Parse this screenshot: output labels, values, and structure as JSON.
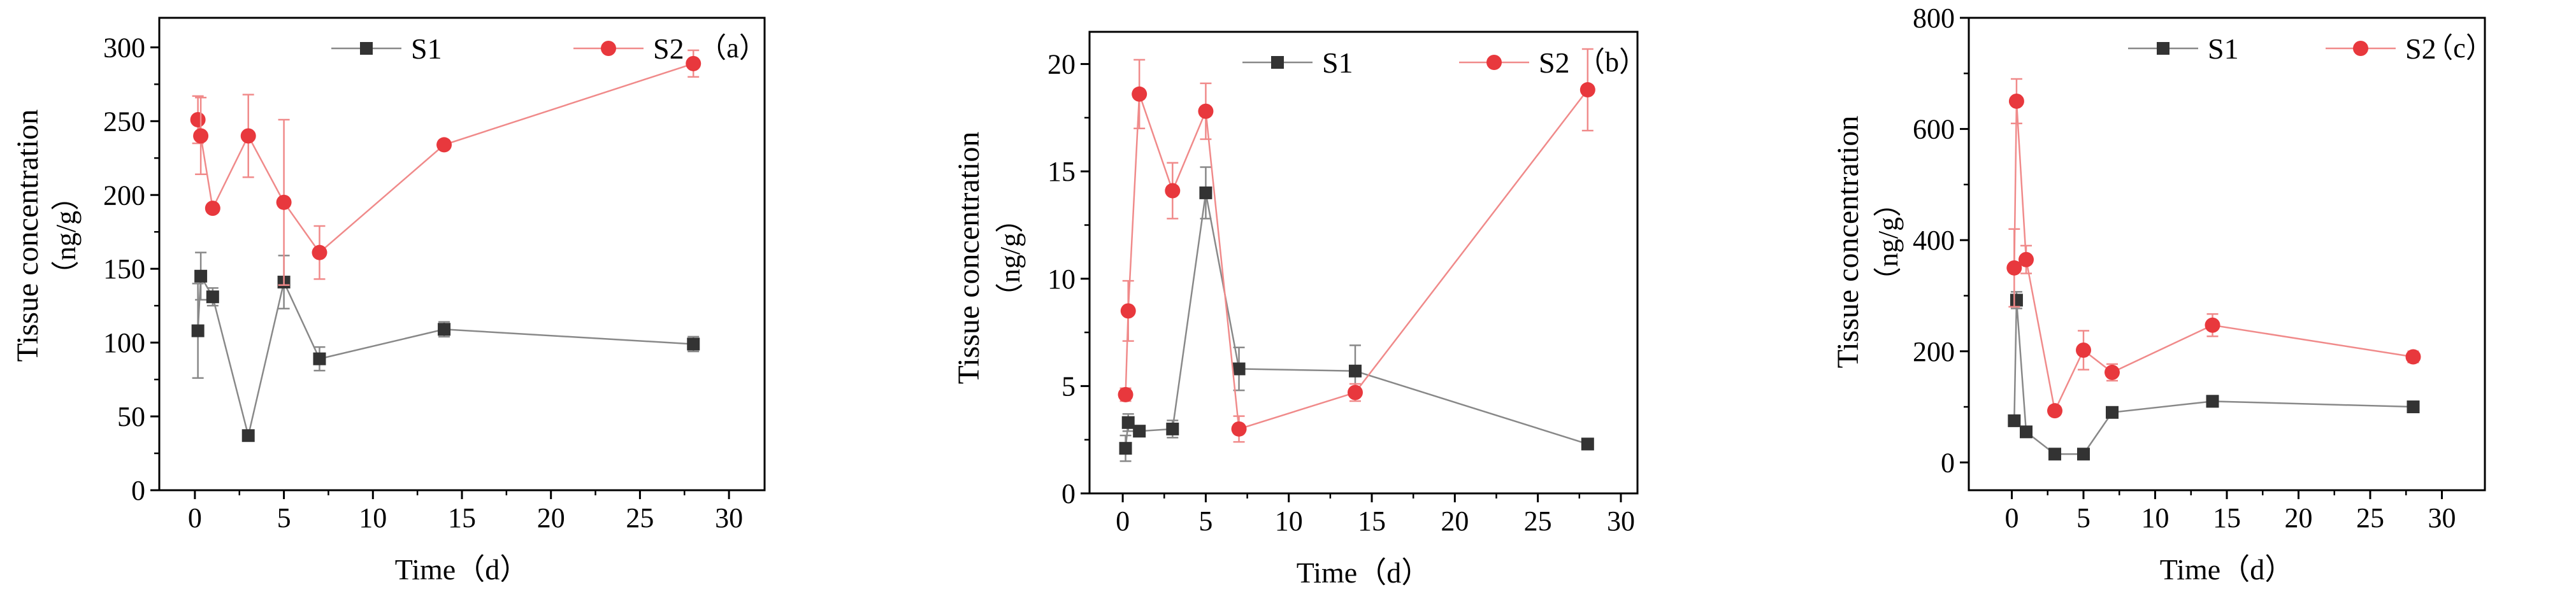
{
  "chart_data": [
    {
      "type": "line",
      "panel_label": "（a）",
      "xlabel": "Time（d）",
      "ylabel": "Tissue concentration",
      "ylabel_unit": "（ng/g）",
      "xlim": [
        -2,
        32
      ],
      "ylim": [
        0,
        320
      ],
      "xticks": [
        0,
        5,
        10,
        15,
        20,
        25,
        30
      ],
      "yticks": [
        0,
        50,
        100,
        150,
        200,
        250,
        300
      ],
      "series": [
        {
          "name": "S1",
          "color": "#888888",
          "marker_color": "#333333",
          "marker": "square",
          "x": [
            0.17,
            0.33,
            1,
            3,
            5,
            7,
            14,
            28
          ],
          "values": [
            108,
            145,
            131,
            37,
            141,
            89,
            109,
            99
          ],
          "errors": [
            32,
            16,
            6,
            3,
            18,
            8,
            5,
            5
          ]
        },
        {
          "name": "S2",
          "color": "#f08a8a",
          "marker_color": "#e8383d",
          "marker": "circle",
          "x": [
            0.17,
            0.33,
            1,
            3,
            5,
            7,
            14,
            28
          ],
          "values": [
            251,
            240,
            191,
            240,
            195,
            161,
            234,
            289
          ],
          "errors": [
            16,
            26,
            3,
            28,
            56,
            18,
            3,
            9
          ]
        }
      ]
    },
    {
      "type": "line",
      "panel_label": "（b）",
      "xlabel": "Time（d）",
      "ylabel": "Tissue concentration",
      "ylabel_unit": "（ng/g）",
      "xlim": [
        -2,
        31
      ],
      "ylim": [
        0,
        21.5
      ],
      "xticks": [
        0,
        5,
        10,
        15,
        20,
        25,
        30
      ],
      "yticks": [
        0,
        5,
        10,
        15,
        20
      ],
      "series": [
        {
          "name": "S1",
          "color": "#888888",
          "marker_color": "#333333",
          "marker": "square",
          "x": [
            0.17,
            0.33,
            1,
            3,
            5,
            7,
            14,
            28
          ],
          "values": [
            2.1,
            3.3,
            2.9,
            3.0,
            14.0,
            5.8,
            5.7,
            2.3
          ],
          "errors": [
            0.6,
            0.4,
            0.2,
            0.4,
            1.2,
            1.0,
            1.2,
            0.2
          ]
        },
        {
          "name": "S2",
          "color": "#f08a8a",
          "marker_color": "#e8383d",
          "marker": "circle",
          "x": [
            0.17,
            0.33,
            1,
            3,
            5,
            7,
            14,
            28
          ],
          "values": [
            4.6,
            8.5,
            18.6,
            14.1,
            17.8,
            3.0,
            4.7,
            18.8
          ],
          "errors": [
            0.3,
            1.4,
            1.6,
            1.3,
            1.3,
            0.6,
            0.4,
            1.9
          ]
        }
      ]
    },
    {
      "type": "line",
      "panel_label": "（c）",
      "xlabel": "Time（d）",
      "ylabel": "Tissue concentration",
      "ylabel_unit": "（ng/g）",
      "xlim": [
        -3,
        33
      ],
      "ylim": [
        -50,
        800
      ],
      "xticks": [
        0,
        5,
        10,
        15,
        20,
        25,
        30
      ],
      "yticks": [
        0,
        200,
        400,
        600,
        800
      ],
      "series": [
        {
          "name": "S1",
          "color": "#888888",
          "marker_color": "#333333",
          "marker": "square",
          "x": [
            0.17,
            0.33,
            1,
            3,
            5,
            7,
            14,
            28
          ],
          "values": [
            75,
            292,
            55,
            15,
            15,
            90,
            110,
            100
          ],
          "errors": [
            5,
            15,
            5,
            3,
            3,
            8,
            10,
            8
          ]
        },
        {
          "name": "S2",
          "color": "#f08a8a",
          "marker_color": "#e8383d",
          "marker": "circle",
          "x": [
            0.17,
            0.33,
            1,
            3,
            5,
            7,
            14,
            28
          ],
          "values": [
            350,
            650,
            365,
            93,
            202,
            162,
            247,
            190
          ],
          "errors": [
            70,
            40,
            25,
            8,
            35,
            15,
            20,
            10
          ]
        }
      ]
    }
  ]
}
